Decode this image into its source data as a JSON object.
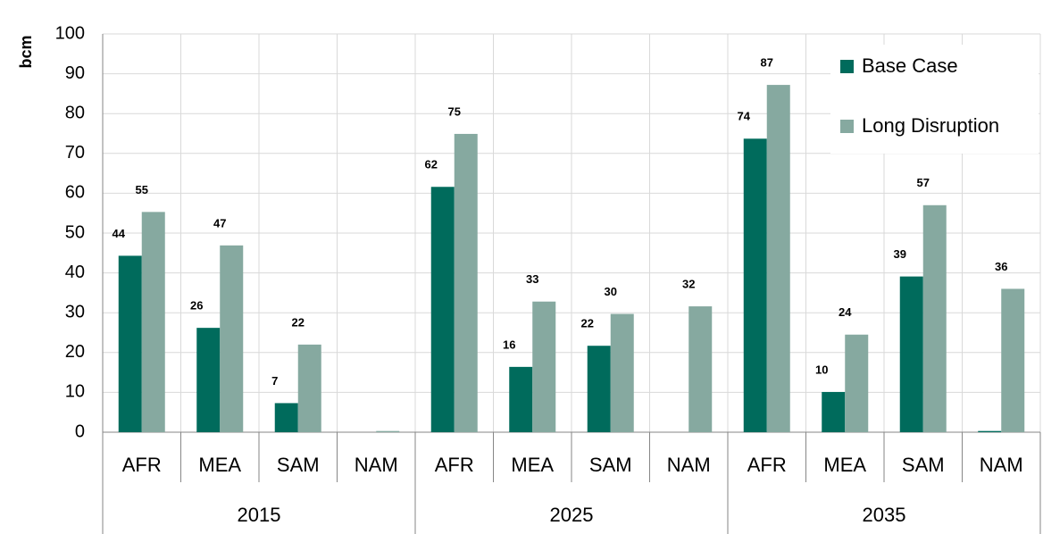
{
  "chart_data": {
    "type": "bar",
    "y_label": "bcm",
    "categories": [
      "AFR",
      "MEA",
      "SAM",
      "NAM",
      "AFR",
      "MEA",
      "SAM",
      "NAM",
      "AFR",
      "MEA",
      "SAM",
      "NAM"
    ],
    "groups": [
      "2015",
      "2025",
      "2035"
    ],
    "series": [
      {
        "name": "Base Case",
        "color": "#006b5c",
        "values": [
          44.3,
          26.2,
          7.3,
          0,
          61.6,
          16.4,
          21.7,
          0,
          73.7,
          10.1,
          39.1,
          0.3
        ],
        "value_labels": [
          "44",
          "26",
          "7",
          null,
          "62",
          "16",
          "22",
          null,
          "74",
          "10",
          "39",
          null
        ]
      },
      {
        "name": "Long Disruption",
        "color": "#86a9a0",
        "values": [
          55.3,
          46.9,
          22,
          0.3,
          74.9,
          32.8,
          29.7,
          31.6,
          87.2,
          24.5,
          57,
          36
        ],
        "value_labels": [
          "55",
          "47",
          "22",
          null,
          "75",
          "33",
          "30",
          "32",
          "87",
          "24",
          "57",
          "36"
        ]
      }
    ],
    "ylim": [
      0,
      100
    ],
    "yticks": [
      0,
      10,
      20,
      30,
      40,
      50,
      60,
      70,
      80,
      90,
      100
    ],
    "grid": true,
    "legend": "upper right"
  }
}
